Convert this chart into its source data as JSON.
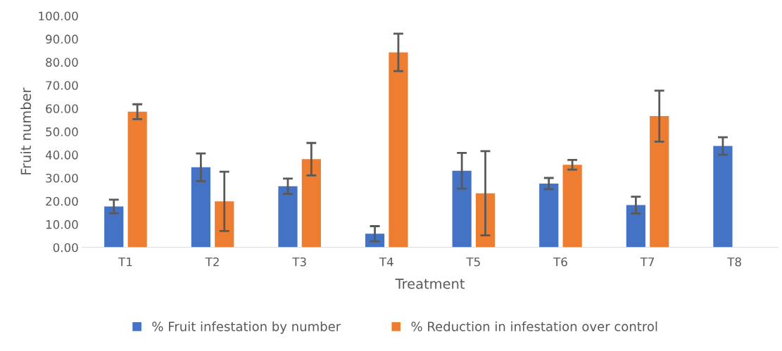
{
  "chart_data": {
    "type": "bar",
    "xlabel": "Treatment",
    "ylabel": "Fruit number",
    "categories": [
      "T1",
      "T2",
      "T3",
      "T4",
      "T5",
      "T6",
      "T7",
      "T8"
    ],
    "series": [
      {
        "name": "% Fruit infestation by number",
        "color": "#4472c4",
        "values": [
          17.7,
          34.6,
          26.4,
          5.9,
          33.1,
          27.6,
          18.3,
          43.8
        ],
        "errors": [
          2.9,
          6.0,
          3.3,
          3.3,
          7.7,
          2.4,
          3.6,
          3.8
        ]
      },
      {
        "name": "% Reduction in infestation over control",
        "color": "#ed7d31",
        "values": [
          58.6,
          19.9,
          38.1,
          84.2,
          23.4,
          35.7,
          56.7,
          null
        ],
        "errors": [
          3.2,
          12.8,
          7.0,
          8.1,
          18.2,
          2.1,
          11.0,
          null
        ]
      }
    ],
    "ylim": [
      0,
      100
    ],
    "yticks": [
      {
        "value": 0,
        "label": "0.00"
      },
      {
        "value": 10,
        "label": "10.00"
      },
      {
        "value": 20,
        "label": "20.00"
      },
      {
        "value": 30,
        "label": "30.00"
      },
      {
        "value": 40,
        "label": "40.00"
      },
      {
        "value": 50,
        "label": "50.00"
      },
      {
        "value": 60,
        "label": "60.00"
      },
      {
        "value": 70,
        "label": "70.00"
      },
      {
        "value": 80,
        "label": "80.00"
      },
      {
        "value": 90,
        "label": "90.00"
      },
      {
        "value": 100,
        "label": "100.00"
      }
    ],
    "grid": false,
    "legend": "bottom"
  }
}
